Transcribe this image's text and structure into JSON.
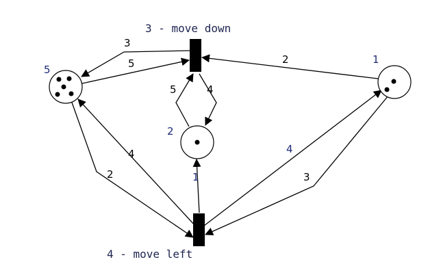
{
  "places": [
    {
      "id": "p5",
      "label": "5",
      "tokens": 5
    },
    {
      "id": "p2",
      "label": "2",
      "tokens": 1
    },
    {
      "id": "p1",
      "label": "1",
      "tokens": 2
    }
  ],
  "transitions": [
    {
      "id": "t3",
      "label": "3 - move down"
    },
    {
      "id": "t4",
      "label": "4 - move left"
    }
  ],
  "arcs": [
    {
      "from": "t3",
      "to": "p5",
      "weight": "3"
    },
    {
      "from": "p5",
      "to": "t3",
      "weight": "5"
    },
    {
      "from": "p1",
      "to": "t3",
      "weight": "2"
    },
    {
      "from": "p2",
      "to": "t3",
      "weight": "5"
    },
    {
      "from": "t3",
      "to": "p2",
      "weight": "4"
    },
    {
      "from": "t4",
      "to": "p5",
      "weight": "4"
    },
    {
      "from": "p5",
      "to": "t4",
      "weight": "2"
    },
    {
      "from": "t4",
      "to": "p2",
      "weight": "1"
    },
    {
      "from": "t4",
      "to": "p1",
      "weight": "4"
    },
    {
      "from": "p1",
      "to": "t4",
      "weight": "3"
    }
  ]
}
